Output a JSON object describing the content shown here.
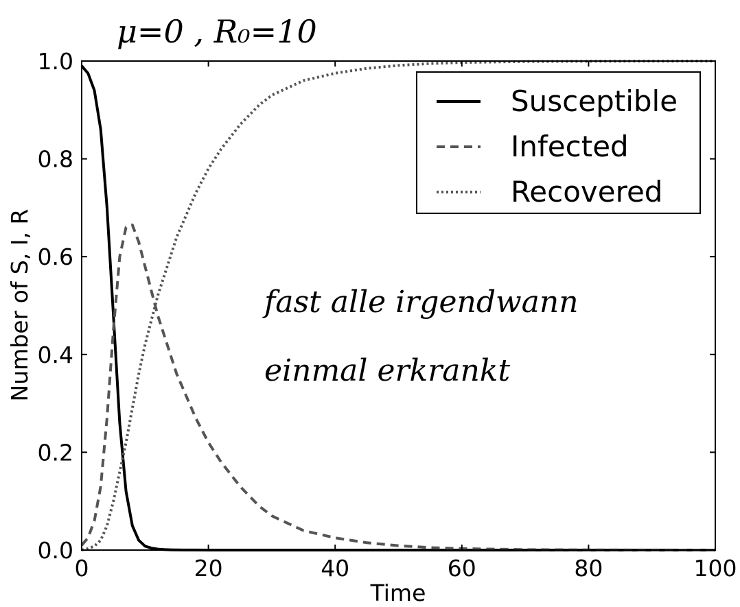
{
  "chart_data": {
    "type": "line",
    "title": "",
    "xlabel": "Time",
    "ylabel": "Number of S, I, R",
    "xlim": [
      0,
      100
    ],
    "ylim": [
      0,
      1.0
    ],
    "x_ticks": [
      "0",
      "20",
      "40",
      "60",
      "80",
      "100"
    ],
    "y_ticks": [
      "0.0",
      "0.2",
      "0.4",
      "0.6",
      "0.8",
      "1.0"
    ],
    "grid": false,
    "legend_position": "top-right",
    "x": [
      0,
      1,
      2,
      3,
      4,
      5,
      6,
      7,
      8,
      9,
      10,
      11,
      12,
      13,
      14,
      15,
      16,
      18,
      20,
      22,
      25,
      28,
      30,
      35,
      40,
      45,
      50,
      55,
      60,
      70,
      80,
      90,
      100
    ],
    "series": [
      {
        "name": "Susceptible",
        "style": "solid",
        "color": "#000000",
        "values": [
          0.99,
          0.975,
          0.94,
          0.86,
          0.7,
          0.48,
          0.26,
          0.12,
          0.05,
          0.02,
          0.008,
          0.004,
          0.002,
          0.001,
          0.0005,
          0.0003,
          0.0002,
          0.0001,
          0,
          0,
          0,
          0,
          0,
          0,
          0,
          0,
          0,
          0,
          0,
          0,
          0,
          0,
          0
        ]
      },
      {
        "name": "Infected",
        "style": "dashed",
        "color": "#555555",
        "values": [
          0.01,
          0.025,
          0.06,
          0.13,
          0.27,
          0.45,
          0.6,
          0.66,
          0.665,
          0.63,
          0.58,
          0.53,
          0.48,
          0.44,
          0.4,
          0.36,
          0.33,
          0.27,
          0.22,
          0.18,
          0.13,
          0.09,
          0.07,
          0.04,
          0.025,
          0.015,
          0.009,
          0.005,
          0.003,
          0.001,
          0.0004,
          0.0001,
          0
        ]
      },
      {
        "name": "Recovered",
        "style": "dotted",
        "color": "#555555",
        "values": [
          0,
          0.003,
          0.008,
          0.02,
          0.05,
          0.1,
          0.16,
          0.22,
          0.29,
          0.36,
          0.42,
          0.47,
          0.52,
          0.56,
          0.6,
          0.64,
          0.67,
          0.73,
          0.78,
          0.82,
          0.87,
          0.91,
          0.93,
          0.96,
          0.975,
          0.985,
          0.991,
          0.995,
          0.997,
          0.999,
          0.9996,
          0.9999,
          1.0
        ]
      }
    ]
  },
  "annotations": {
    "top": "μ=0 , R₀=10",
    "note_line1": "fast alle irgendwann",
    "note_line2": "einmal erkrankt"
  }
}
